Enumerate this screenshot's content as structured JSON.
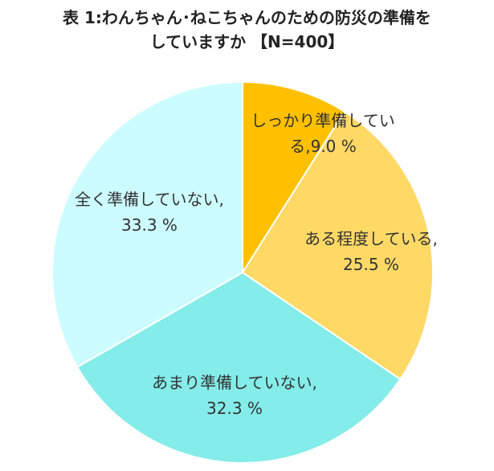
{
  "chart_data": {
    "type": "pie",
    "title": [
      "表 1:わんちゃん･ねこちゃんのための防災の準備を",
      "していますか 【N=400】"
    ],
    "categories": [
      "しっかり準備している,",
      "ある程度している,",
      "あまり準備していない,",
      "全く準備していない,"
    ],
    "values": [
      9.0,
      25.5,
      32.3,
      33.3
    ],
    "value_labels": [
      "9.0 %",
      "25.5 %",
      "32.3 %",
      "33.3 %"
    ],
    "colors": [
      "#ffc000",
      "#ffd966",
      "#84ece9",
      "#ccfcff"
    ]
  }
}
